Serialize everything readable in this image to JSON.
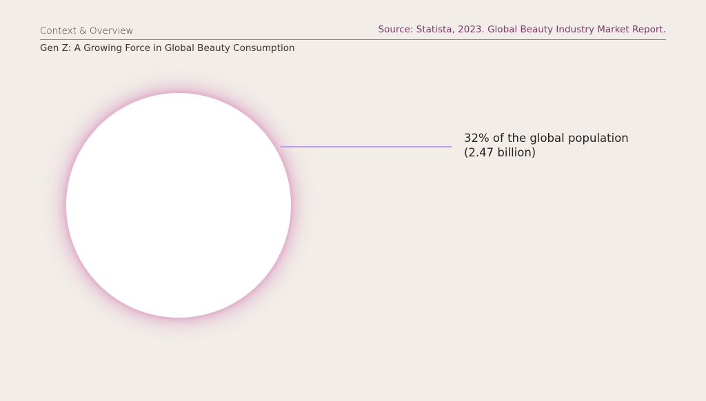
{
  "header": {
    "section": "Context & Overview",
    "source": "Source: Statista, 2023. Global Beauty Industry Market Report.",
    "subtitle": "Gen Z: A Growing Force in Global Beauty Consumption"
  },
  "callout": {
    "line1": "32% of the global population",
    "line2": "(2.47 billion)"
  },
  "colors": {
    "background": "#f2ede9",
    "source_text": "#7a3a66",
    "circle_glow": "#e2b3cc",
    "leader_line": "#b89af0"
  }
}
